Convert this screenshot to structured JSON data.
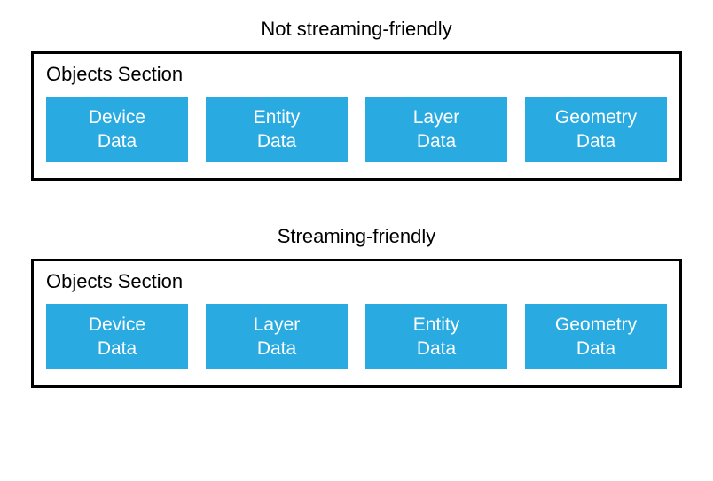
{
  "diagram": {
    "type": "infographic",
    "background_color": "#ffffff",
    "box_border_color": "#000000",
    "box_border_width": 3,
    "item_background_color": "#29abe2",
    "item_text_color": "#ffffff",
    "title_fontsize": 22,
    "label_fontsize": 22,
    "item_fontsize": 21,
    "sections": [
      {
        "title": "Not streaming-friendly",
        "box_label": "Objects Section",
        "items": [
          "Device\nData",
          "Entity\nData",
          "Layer\nData",
          "Geometry\nData"
        ]
      },
      {
        "title": "Streaming-friendly",
        "box_label": "Objects Section",
        "items": [
          "Device\nData",
          "Layer\nData",
          "Entity\nData",
          "Geometry\nData"
        ]
      }
    ]
  }
}
